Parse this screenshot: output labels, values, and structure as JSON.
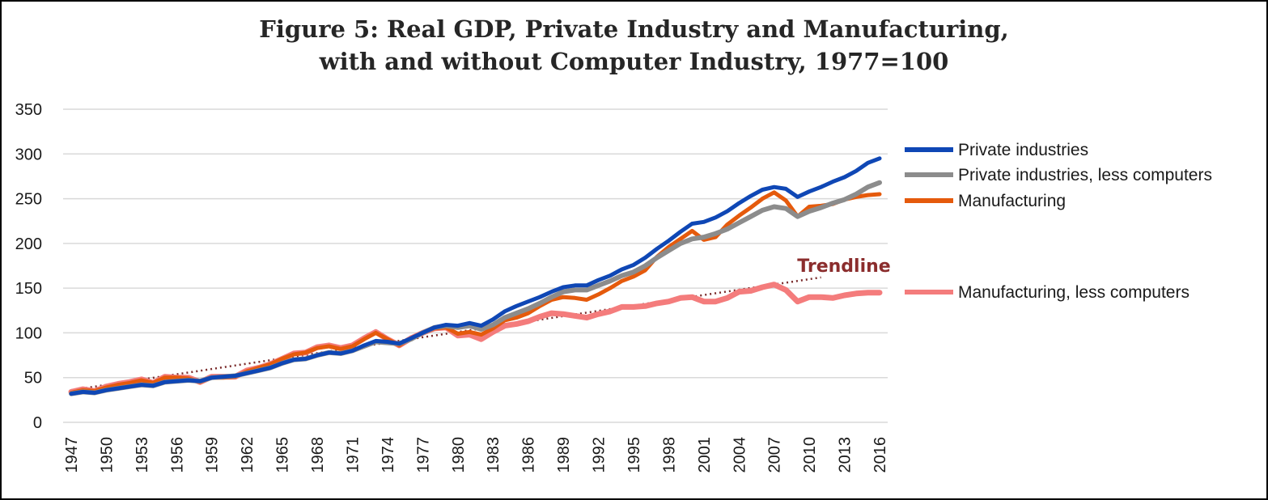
{
  "chart_data": {
    "type": "line",
    "title": "Figure 5: Real GDP, Private Industry and Manufacturing,",
    "subtitle": "with and without Computer Industry, 1977=100",
    "xlabel": "",
    "ylabel": "",
    "ylim": [
      0,
      350
    ],
    "yticks": [
      "0",
      "50",
      "100",
      "150",
      "200",
      "250",
      "300",
      "350"
    ],
    "xticks": [
      "1947",
      "1950",
      "1953",
      "1956",
      "1959",
      "1962",
      "1965",
      "1968",
      "1971",
      "1974",
      "1977",
      "1980",
      "1983",
      "1986",
      "1989",
      "1992",
      "1995",
      "1998",
      "2001",
      "2004",
      "2007",
      "2010",
      "2013",
      "2016"
    ],
    "grid": true,
    "legend_position": "right",
    "x": [
      1947,
      1948,
      1949,
      1950,
      1951,
      1952,
      1953,
      1954,
      1955,
      1956,
      1957,
      1958,
      1959,
      1960,
      1961,
      1962,
      1963,
      1964,
      1965,
      1966,
      1967,
      1968,
      1969,
      1970,
      1971,
      1972,
      1973,
      1974,
      1975,
      1976,
      1977,
      1978,
      1979,
      1980,
      1981,
      1982,
      1983,
      1984,
      1985,
      1986,
      1987,
      1988,
      1989,
      1990,
      1991,
      1992,
      1993,
      1994,
      1995,
      1996,
      1997,
      1998,
      1999,
      2000,
      2001,
      2002,
      2003,
      2004,
      2005,
      2006,
      2007,
      2008,
      2009,
      2010,
      2011,
      2012,
      2013,
      2014,
      2015,
      2016
    ],
    "series": [
      {
        "name": "Manufacturing, less computers",
        "color": "#F47C7C",
        "width": 7,
        "values": [
          34,
          37,
          35,
          40,
          43,
          45,
          48,
          44,
          51,
          50,
          50,
          45,
          51,
          51,
          51,
          58,
          61,
          65,
          71,
          77,
          78,
          84,
          86,
          83,
          86,
          94,
          101,
          93,
          86,
          94,
          100,
          105,
          106,
          97,
          98,
          93,
          101,
          108,
          110,
          113,
          118,
          122,
          121,
          119,
          117,
          121,
          124,
          129,
          129,
          130,
          133,
          135,
          139,
          140,
          135,
          135,
          139,
          146,
          147,
          151,
          154,
          148,
          135,
          140,
          140,
          139,
          142,
          144,
          145,
          145
        ]
      },
      {
        "name": "Manufacturing",
        "color": "#E55A0C",
        "width": 5,
        "values": [
          33,
          36,
          35,
          39,
          42,
          44,
          47,
          44,
          50,
          50,
          49,
          45,
          50,
          50,
          51,
          57,
          61,
          65,
          71,
          76,
          78,
          83,
          85,
          82,
          85,
          93,
          100,
          93,
          86,
          94,
          100,
          105,
          106,
          99,
          101,
          98,
          105,
          114,
          117,
          122,
          130,
          137,
          140,
          139,
          137,
          143,
          150,
          158,
          163,
          170,
          185,
          196,
          205,
          214,
          204,
          207,
          221,
          231,
          240,
          250,
          257,
          248,
          230,
          241,
          242,
          244,
          249,
          252,
          254,
          255
        ]
      },
      {
        "name": "Private industries, less computers",
        "color": "#8C8C8C",
        "width": 6,
        "values": [
          32,
          34,
          33,
          36,
          38,
          40,
          42,
          41,
          45,
          46,
          47,
          46,
          50,
          51,
          52,
          55,
          58,
          61,
          66,
          70,
          71,
          75,
          78,
          77,
          80,
          85,
          90,
          89,
          88,
          93,
          100,
          106,
          108,
          106,
          108,
          104,
          109,
          117,
          122,
          127,
          133,
          140,
          146,
          148,
          148,
          153,
          158,
          164,
          168,
          175,
          184,
          192,
          200,
          205,
          207,
          211,
          216,
          223,
          230,
          237,
          241,
          239,
          230,
          236,
          240,
          245,
          249,
          255,
          263,
          268
        ]
      },
      {
        "name": "Private industries",
        "color": "#0F47B5",
        "width": 5,
        "values": [
          32,
          34,
          33,
          36,
          38,
          40,
          42,
          41,
          45,
          46,
          47,
          46,
          50,
          51,
          52,
          55,
          58,
          61,
          66,
          70,
          71,
          75,
          78,
          77,
          80,
          86,
          91,
          90,
          88,
          94,
          100,
          106,
          109,
          108,
          111,
          108,
          115,
          124,
          130,
          135,
          140,
          146,
          151,
          153,
          153,
          159,
          164,
          171,
          176,
          184,
          194,
          203,
          213,
          222,
          224,
          229,
          236,
          245,
          253,
          260,
          263,
          261,
          252,
          258,
          263,
          269,
          274,
          281,
          290,
          295
        ]
      }
    ],
    "legend": [
      "Private industries",
      "Private industries, less computers",
      "Manufacturing",
      "Manufacturing, less computers"
    ],
    "annotation": {
      "label": "Trendline",
      "color": "#8B2D2D",
      "line_color": "#7A2A2A",
      "line_start": [
        1947,
        36
      ],
      "line_end": [
        2011,
        162
      ]
    }
  }
}
